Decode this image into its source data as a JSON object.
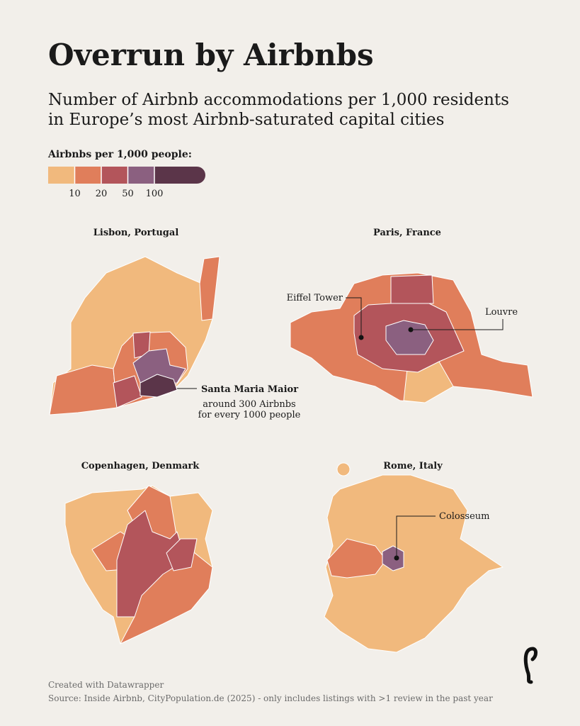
{
  "title": "Overrun by Airbnbs",
  "subtitle": [
    "Number of Airbnb accommodations per 1,000 residents",
    "in Europe’s most Airbnb-saturated capital cities"
  ],
  "legend": {
    "title": "Airbnbs per 1,000 people:",
    "colors": [
      "#f1b97d",
      "#e07e5b",
      "#b3555b",
      "#8b6080",
      "#5b3549"
    ],
    "ticks": [
      10,
      20,
      50,
      100
    ]
  },
  "maps": [
    {
      "title": "Lisbon, Portugal",
      "annotations": [
        {
          "label": "Santa Maria Maior",
          "note": [
            "around 300 Airbnbs",
            "for every 1000 people"
          ]
        }
      ]
    },
    {
      "title": "Paris, France",
      "annotations": [
        {
          "label": "Eiffel Tower"
        },
        {
          "label": "Louvre"
        }
      ]
    },
    {
      "title": "Copenhagen, Denmark"
    },
    {
      "title": "Rome, Italy",
      "annotations": [
        {
          "label": "Colosseum"
        }
      ]
    }
  ],
  "footer": {
    "credit": "Created with Datawrapper",
    "source": "Source: Inside Airbnb, CityPopulation.de (2025) - only includes listings with >1 review in the past year"
  }
}
